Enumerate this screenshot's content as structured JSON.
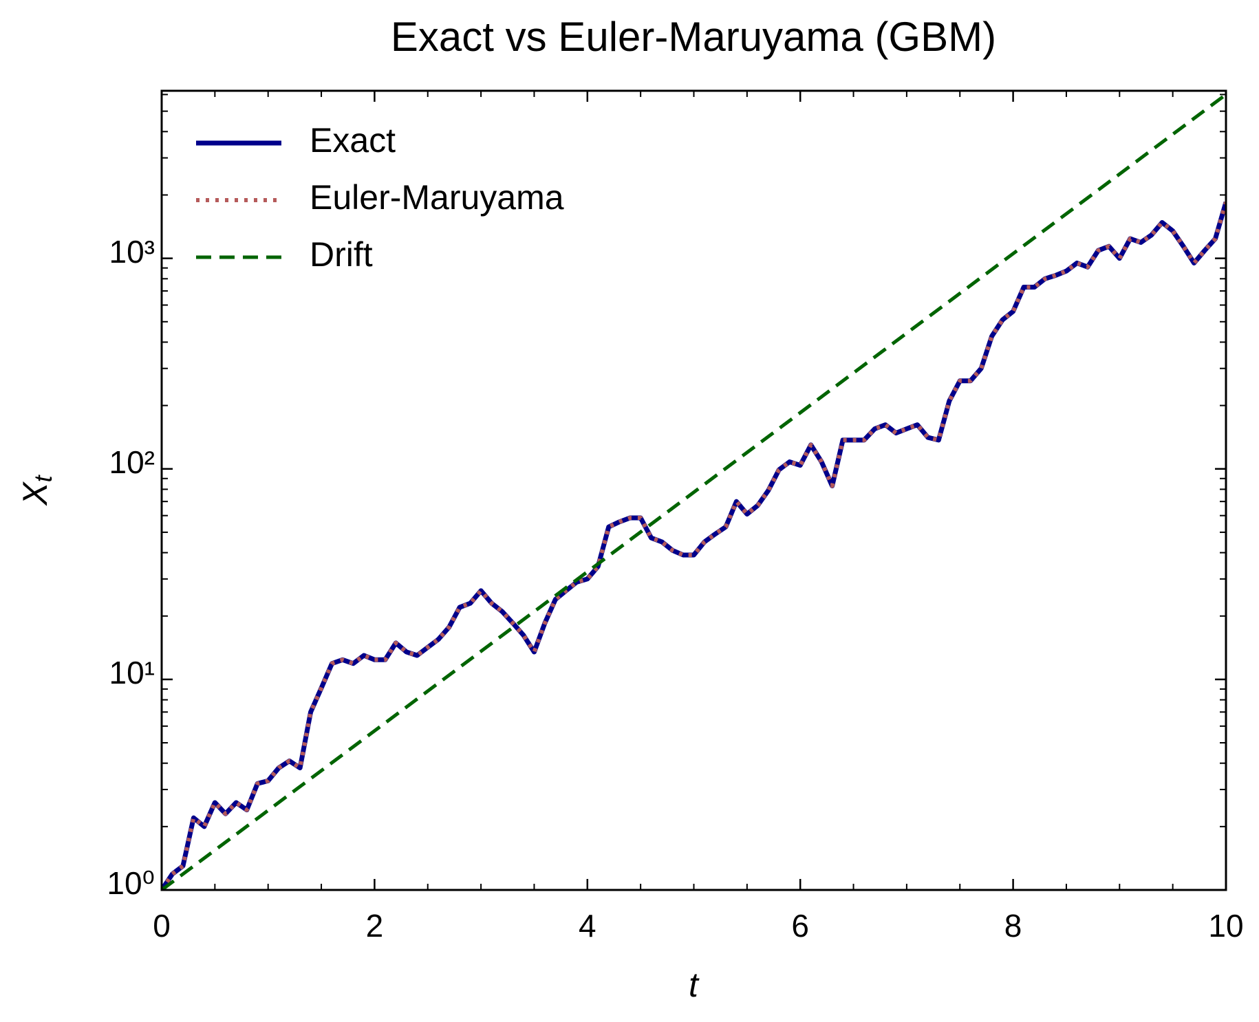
{
  "chart_data": {
    "type": "line",
    "title": "Exact vs Euler-Maruyama (GBM)",
    "xlabel": "t",
    "ylabel": "X",
    "ylabel_subscript": "t",
    "xlim": [
      0,
      10
    ],
    "xticks": [
      0,
      2,
      4,
      6,
      8,
      10
    ],
    "xminorticks": [
      0.5,
      1,
      1.5,
      2.5,
      3,
      3.5,
      4.5,
      5,
      5.5,
      6.5,
      7,
      7.5,
      8.5,
      9,
      9.5
    ],
    "ylim": [
      1,
      6250
    ],
    "yscale": "log",
    "yticks": [
      {
        "value": 1,
        "label": "10⁰"
      },
      {
        "value": 10,
        "label": "10¹"
      },
      {
        "value": 100,
        "label": "10²"
      },
      {
        "value": 1000,
        "label": "10³"
      }
    ],
    "yminorticks": [
      2,
      3,
      4,
      5,
      6,
      7,
      8,
      9,
      20,
      30,
      40,
      50,
      60,
      70,
      80,
      90,
      200,
      300,
      400,
      500,
      600,
      700,
      800,
      900,
      2000,
      3000,
      4000,
      5000,
      6000
    ],
    "legend": "upper left",
    "series": [
      {
        "name": "Exact",
        "color": "#00008b",
        "style": "solid",
        "x": [
          0,
          0.1,
          0.2,
          0.3,
          0.4,
          0.5,
          0.6,
          0.7,
          0.8,
          0.9,
          1,
          1.1,
          1.2,
          1.3,
          1.4,
          1.5,
          1.6,
          1.7,
          1.8,
          1.9,
          2,
          2.1,
          2.2,
          2.3,
          2.4,
          2.5,
          2.6,
          2.7,
          2.8,
          2.9,
          3,
          3.1,
          3.2,
          3.3,
          3.4,
          3.5,
          3.6,
          3.7,
          3.8,
          3.9,
          4,
          4.1,
          4.2,
          4.3,
          4.4,
          4.5,
          4.6,
          4.7,
          4.8,
          4.9,
          5,
          5.1,
          5.2,
          5.3,
          5.4,
          5.5,
          5.6,
          5.7,
          5.8,
          5.9,
          6,
          6.1,
          6.2,
          6.3,
          6.4,
          6.5,
          6.6,
          6.7,
          6.8,
          6.9,
          7,
          7.1,
          7.2,
          7.3,
          7.4,
          7.5,
          7.6,
          7.7,
          7.8,
          7.9,
          8,
          8.1,
          8.2,
          8.3,
          8.4,
          8.5,
          8.6,
          8.7,
          8.8,
          8.9,
          9,
          9.1,
          9.2,
          9.3,
          9.4,
          9.5,
          9.6,
          9.7,
          9.8,
          9.9,
          10
        ],
        "values": [
          1,
          1.19,
          1.3,
          2.2,
          2,
          2.6,
          2.3,
          2.6,
          2.4,
          3.2,
          3.3,
          3.8,
          4.1,
          3.8,
          7,
          9.1,
          11.9,
          12.4,
          11.9,
          13,
          12.4,
          12.4,
          14.9,
          13.5,
          13,
          14.2,
          15.5,
          17.7,
          22,
          23,
          26.4,
          23,
          21,
          18.5,
          16.2,
          13.5,
          18.5,
          24,
          26.4,
          29,
          30,
          34.4,
          53,
          56,
          58.5,
          58.5,
          47,
          45,
          41,
          39,
          39,
          45,
          49,
          53,
          70,
          61,
          67,
          79,
          99,
          108,
          104,
          130,
          108,
          83,
          137,
          137,
          137,
          155,
          162,
          148,
          155,
          162,
          141,
          137,
          210,
          262,
          262,
          300,
          427,
          510,
          560,
          730,
          730,
          800,
          830,
          870,
          950,
          910,
          1090,
          1140,
          1000,
          1240,
          1190,
          1290,
          1480,
          1350,
          1140,
          950,
          1090,
          1240,
          1850
        ]
      },
      {
        "name": "Euler-Maruyama",
        "color": "#b55a5a",
        "style": "dotted",
        "x": [
          0,
          0.1,
          0.2,
          0.3,
          0.4,
          0.5,
          0.6,
          0.7,
          0.8,
          0.9,
          1,
          1.1,
          1.2,
          1.3,
          1.4,
          1.5,
          1.6,
          1.7,
          1.8,
          1.9,
          2,
          2.1,
          2.2,
          2.3,
          2.4,
          2.5,
          2.6,
          2.7,
          2.8,
          2.9,
          3,
          3.1,
          3.2,
          3.3,
          3.4,
          3.5,
          3.6,
          3.7,
          3.8,
          3.9,
          4,
          4.1,
          4.2,
          4.3,
          4.4,
          4.5,
          4.6,
          4.7,
          4.8,
          4.9,
          5,
          5.1,
          5.2,
          5.3,
          5.4,
          5.5,
          5.6,
          5.7,
          5.8,
          5.9,
          6,
          6.1,
          6.2,
          6.3,
          6.4,
          6.5,
          6.6,
          6.7,
          6.8,
          6.9,
          7,
          7.1,
          7.2,
          7.3,
          7.4,
          7.5,
          7.6,
          7.7,
          7.8,
          7.9,
          8,
          8.1,
          8.2,
          8.3,
          8.4,
          8.5,
          8.6,
          8.7,
          8.8,
          8.9,
          9,
          9.1,
          9.2,
          9.3,
          9.4,
          9.5,
          9.6,
          9.7,
          9.8,
          9.9,
          10
        ],
        "values": [
          1,
          1.19,
          1.3,
          2.2,
          2,
          2.6,
          2.3,
          2.6,
          2.4,
          3.2,
          3.3,
          3.8,
          4.1,
          3.8,
          7,
          9.1,
          11.9,
          12.4,
          11.9,
          13,
          12.4,
          12.4,
          14.9,
          13.5,
          13,
          14.2,
          15.5,
          17.7,
          22,
          23,
          26.4,
          23,
          21,
          18.5,
          16.2,
          13.5,
          18.5,
          24,
          26.4,
          29,
          30,
          34.4,
          53,
          56,
          58.5,
          58.5,
          47,
          45,
          41,
          39,
          39,
          45,
          49,
          53,
          70,
          61,
          67,
          79,
          99,
          108,
          104,
          130,
          108,
          83,
          137,
          137,
          137,
          155,
          162,
          148,
          155,
          162,
          141,
          137,
          210,
          262,
          262,
          300,
          427,
          510,
          560,
          730,
          730,
          800,
          830,
          870,
          950,
          910,
          1090,
          1140,
          1000,
          1240,
          1190,
          1290,
          1480,
          1350,
          1140,
          950,
          1090,
          1240,
          1850
        ]
      },
      {
        "name": "Drift",
        "color": "#006400",
        "style": "dashed",
        "x": [
          0,
          10
        ],
        "values": [
          1,
          6000
        ]
      }
    ]
  }
}
